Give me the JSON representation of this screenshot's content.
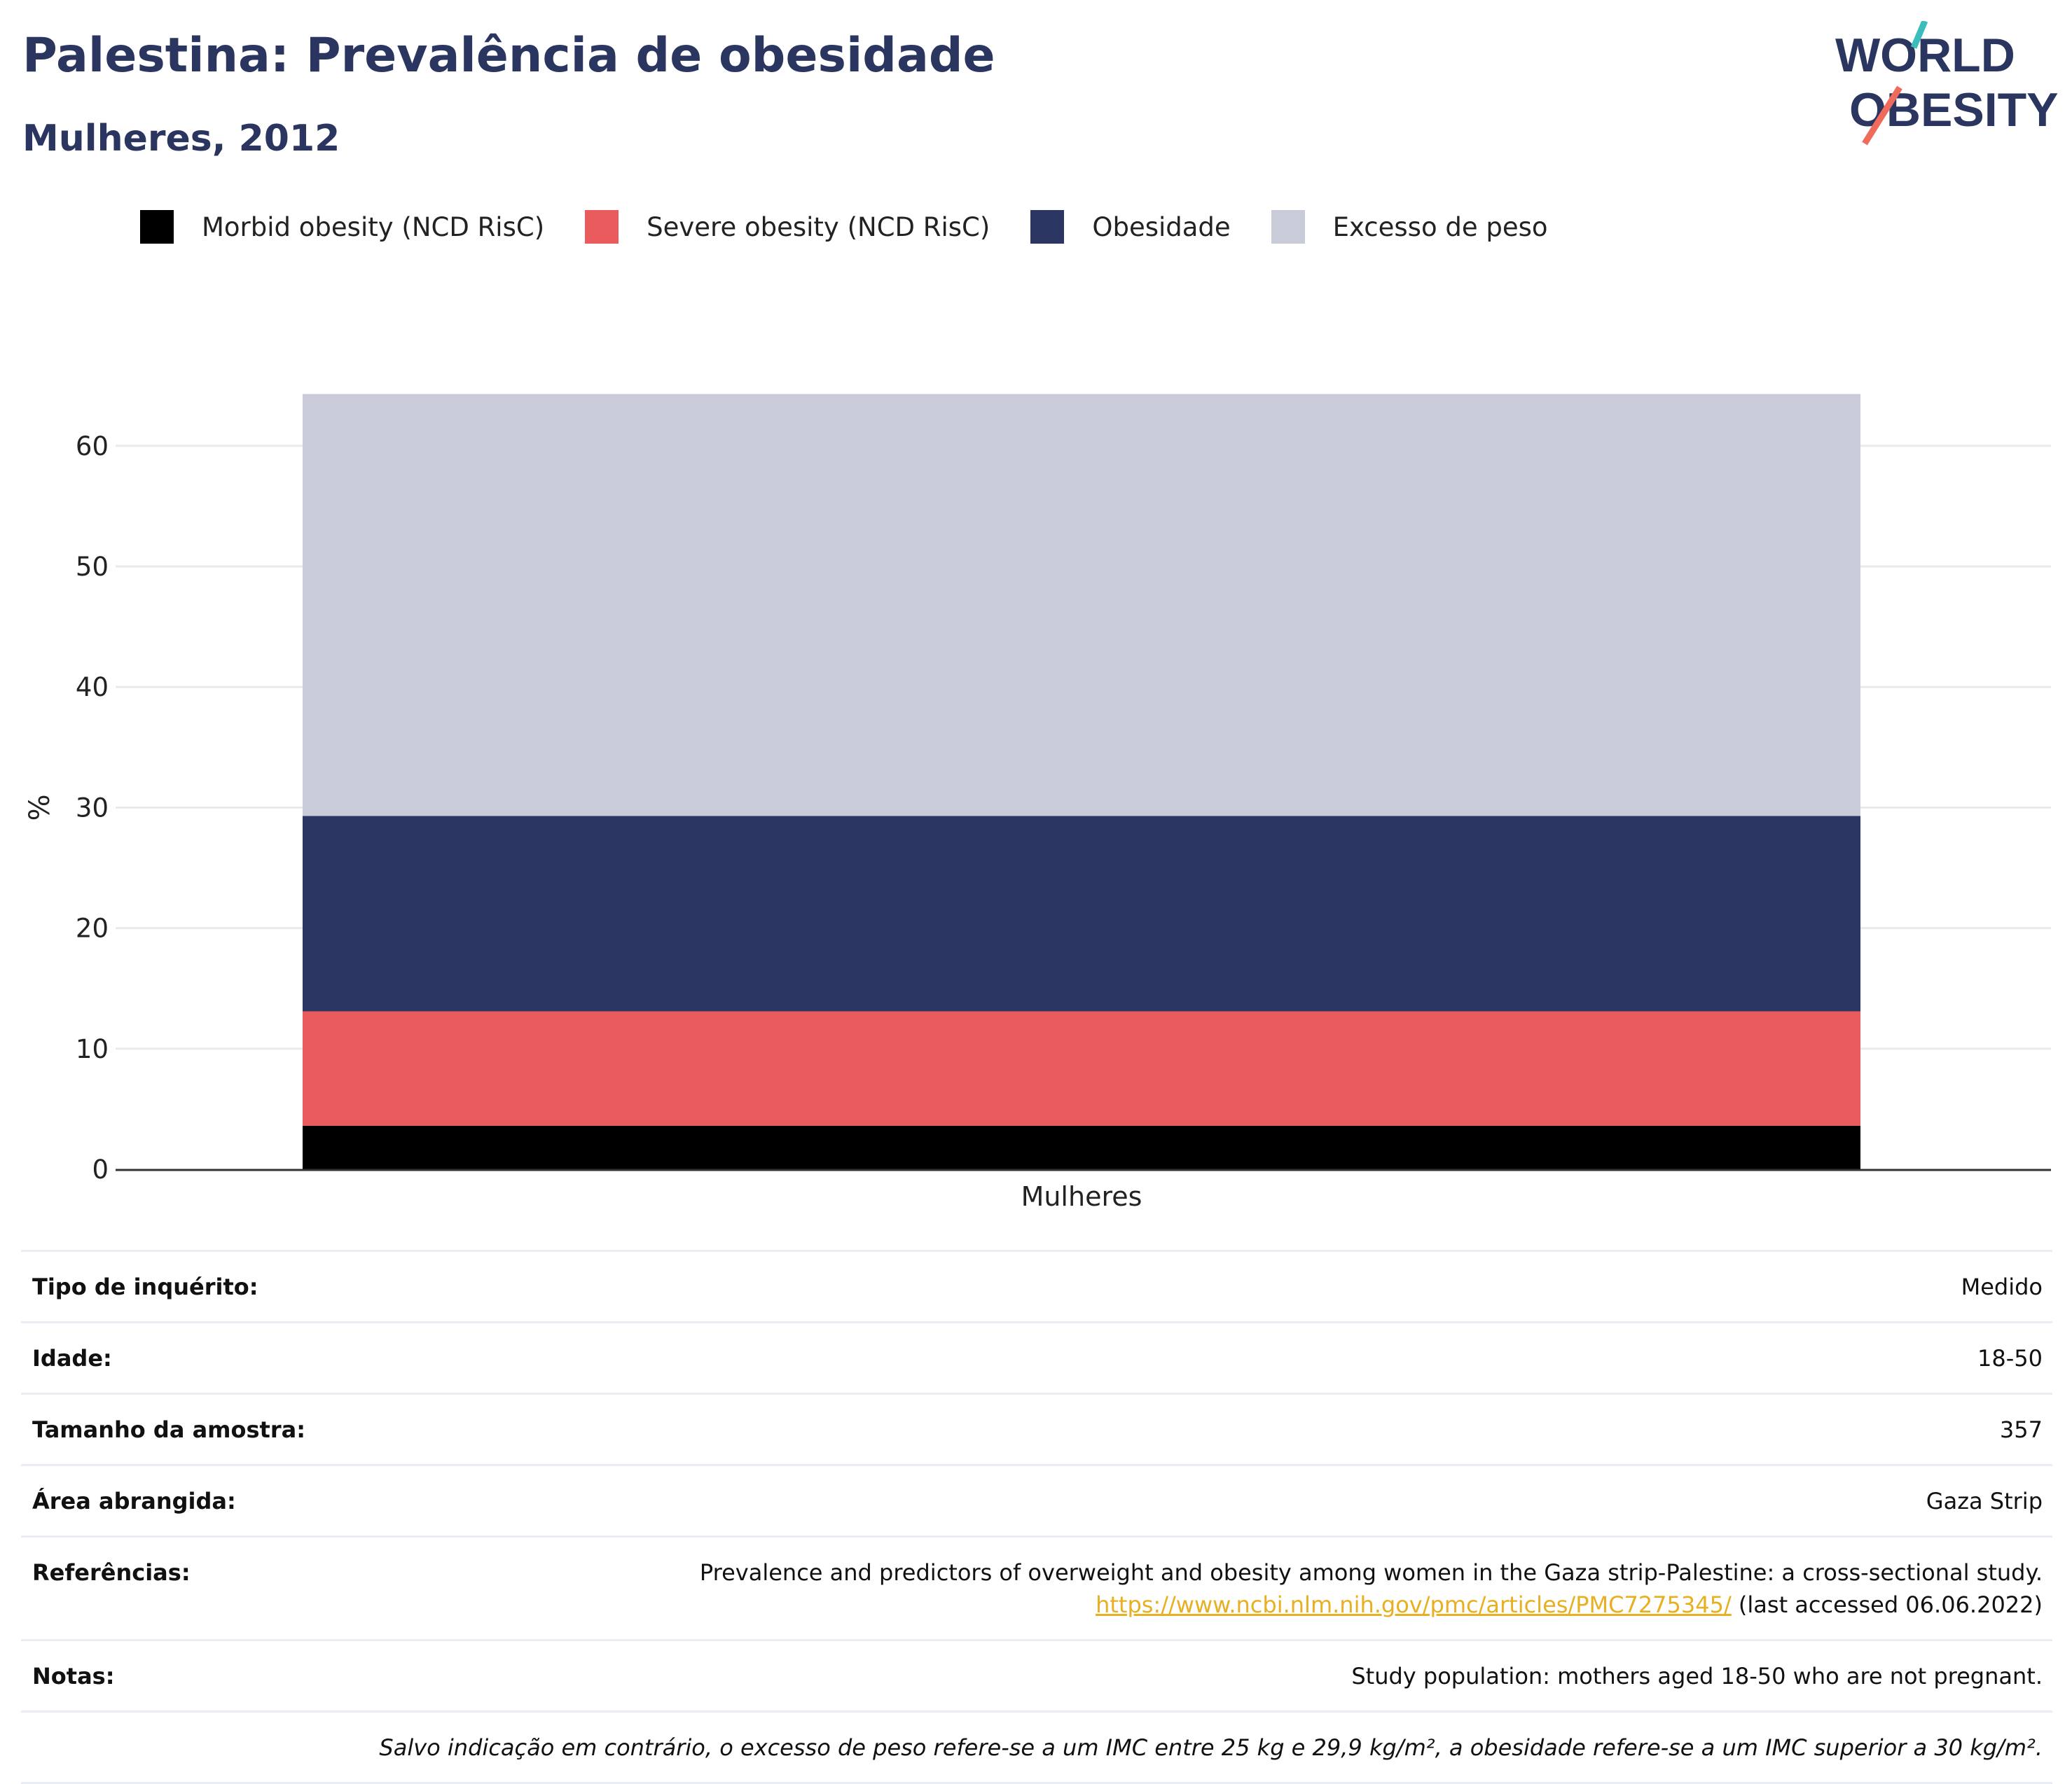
{
  "header": {
    "title": "Palestina: Prevalência de obesidade",
    "subtitle": "Mulheres, 2012"
  },
  "logo": {
    "line1": "WORLD",
    "line2": "OBESITY"
  },
  "colors": {
    "morbid": "#000000",
    "severe": "#ea5b5d",
    "obesity": "#2b3662",
    "overweight": "#c9ccd8",
    "title": "#2a3560",
    "link": "#e8b020",
    "logo_teal": "#3bbdbc",
    "logo_coral": "#ef6b5b"
  },
  "legend": [
    {
      "label": "Morbid obesity (NCD RisC)",
      "color": "#000000"
    },
    {
      "label": "Severe obesity (NCD RisC)",
      "color": "#ea5b5d"
    },
    {
      "label": "Obesidade",
      "color": "#2b3662"
    },
    {
      "label": "Excesso de peso",
      "color": "#c9ccd8"
    }
  ],
  "chart_data": {
    "type": "bar",
    "stacked": false,
    "overlay": true,
    "categories": [
      "Mulheres"
    ],
    "series": [
      {
        "name": "Excesso de peso",
        "values": [
          64.3
        ],
        "color": "#c9ccd8"
      },
      {
        "name": "Obesidade",
        "values": [
          29.3
        ],
        "color": "#2b3662"
      },
      {
        "name": "Severe obesity (NCD RisC)",
        "values": [
          13.1
        ],
        "color": "#ea5b5d"
      },
      {
        "name": "Morbid obesity (NCD RisC)",
        "values": [
          3.6
        ],
        "color": "#000000"
      }
    ],
    "ylabel": "%",
    "xlabel": "",
    "ylim": [
      0,
      66
    ],
    "yticks": [
      0,
      10,
      20,
      30,
      40,
      50,
      60
    ],
    "grid": true,
    "legend_position": "top"
  },
  "info": {
    "survey_type": {
      "label": "Tipo de inquérito:",
      "value": "Medido"
    },
    "age": {
      "label": "Idade:",
      "value": "18-50"
    },
    "sample_size": {
      "label": "Tamanho da amostra:",
      "value": "357"
    },
    "area": {
      "label": "Área abrangida:",
      "value": "Gaza Strip"
    },
    "references": {
      "label": "Referências:",
      "text": "Prevalence and predictors of overweight and obesity among women in the Gaza strip-Palestine: a cross-sectional study.",
      "link": "https://www.ncbi.nlm.nih.gov/pmc/articles/PMC7275345/",
      "accessed": " (last accessed 06.06.2022)"
    },
    "notes": {
      "label": "Notas:",
      "value": "Study population: mothers aged 18-50 who are not pregnant."
    },
    "footnote": "Salvo indicação em contrário, o excesso de peso refere-se a um IMC entre 25 kg e 29,9 kg/m², a obesidade refere-se a um IMC superior a 30 kg/m²."
  }
}
